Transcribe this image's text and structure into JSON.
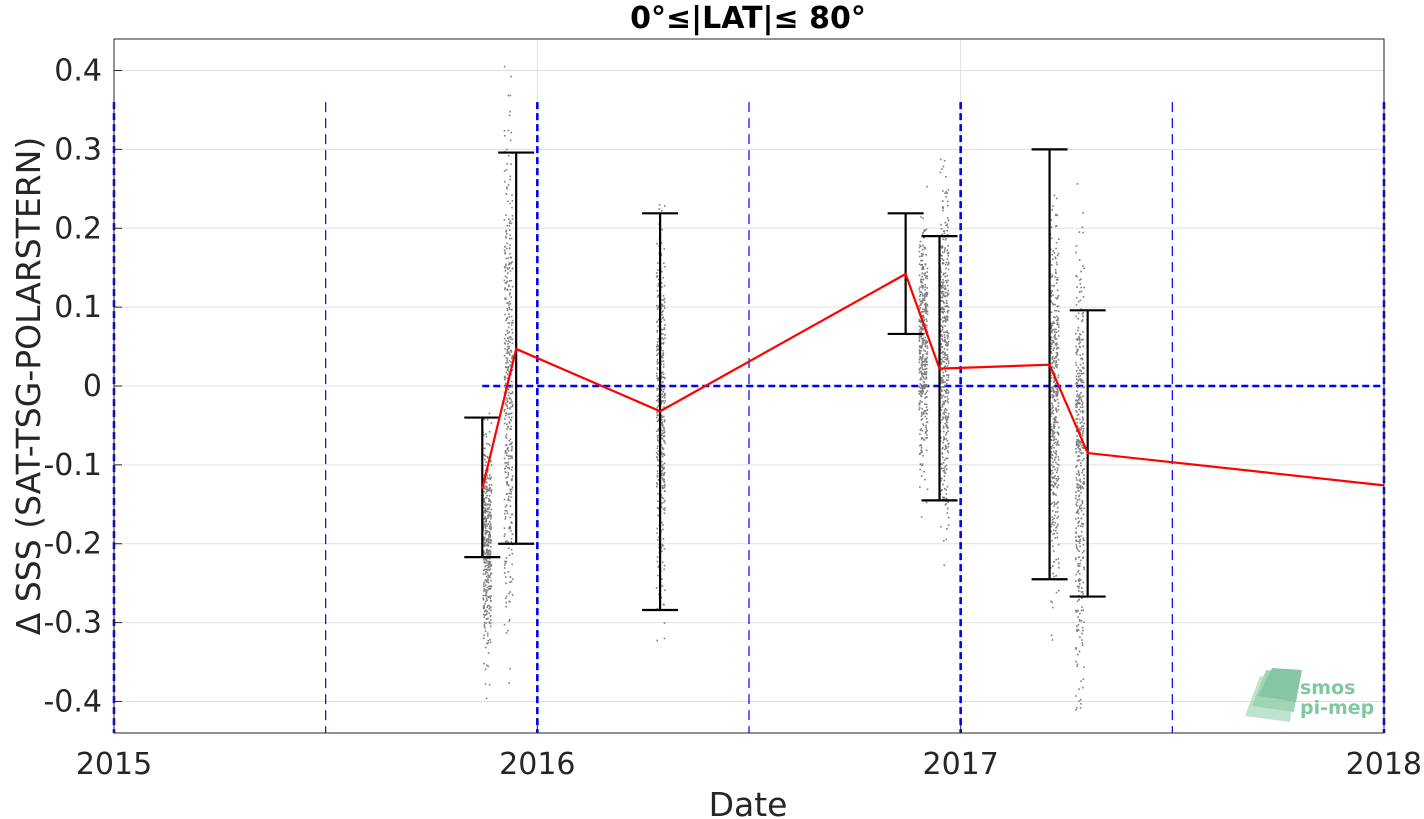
{
  "chart_data": {
    "type": "scatter",
    "title": "0°≤|LAT|≤ 80°",
    "xlabel": "Date",
    "ylabel": "Δ SSS (SAT-TSG-POLARSTERN)",
    "xlim": [
      2015.0,
      2018.0
    ],
    "ylim": [
      -0.44,
      0.44
    ],
    "x_ticks": [
      2015,
      2016,
      2017,
      2018
    ],
    "x_tick_labels": [
      "2015",
      "2016",
      "2017",
      "2018"
    ],
    "y_ticks": [
      0.4,
      0.3,
      0.2,
      0.1,
      0,
      -0.1,
      -0.2,
      -0.3,
      -0.4
    ],
    "y_tick_labels": [
      "0.4",
      "0.3",
      "0.2",
      "0.1",
      "0",
      "-0.1",
      "-0.2",
      "-0.3",
      "-0.4"
    ],
    "grid": true,
    "mean_series": {
      "color": "#ff0000",
      "x": [
        2015.87,
        2015.95,
        2016.29,
        2016.87,
        2016.95,
        2017.21,
        2017.3,
        2018.0
      ],
      "y": [
        -0.13,
        0.047,
        -0.032,
        0.142,
        0.022,
        0.027,
        -0.085,
        -0.126
      ]
    },
    "error_bars": {
      "color": "#000000",
      "x": [
        2015.87,
        2015.95,
        2016.29,
        2016.87,
        2016.95,
        2017.21,
        2017.3
      ],
      "lower": [
        -0.217,
        -0.2,
        -0.284,
        0.066,
        -0.145,
        -0.245,
        -0.267
      ],
      "upper": [
        -0.04,
        0.296,
        0.219,
        0.219,
        0.19,
        0.3,
        0.096
      ]
    },
    "scatter_clusters": {
      "color": "#7f7f7f",
      "x": [
        2015.88,
        2015.93,
        2016.29,
        2016.91,
        2016.96,
        2017.22,
        2017.28
      ],
      "y_center": [
        -0.2,
        0.0,
        -0.03,
        0.05,
        0.05,
        -0.02,
        -0.1
      ],
      "y_spread": [
        0.09,
        0.2,
        0.15,
        0.1,
        0.15,
        0.15,
        0.18
      ]
    },
    "reference_lines": {
      "color": "#0000ff",
      "zero_line_y": 0,
      "zero_line_x_start": 2015.87,
      "year_lines_x": [
        2015.0,
        2016.0,
        2017.0,
        2018.0
      ],
      "half_year_lines_x": [
        2015.5,
        2016.5,
        2017.5
      ]
    }
  },
  "logo": {
    "line1": "smos",
    "line2": "pi-mep",
    "color": "#7fc9a0"
  }
}
